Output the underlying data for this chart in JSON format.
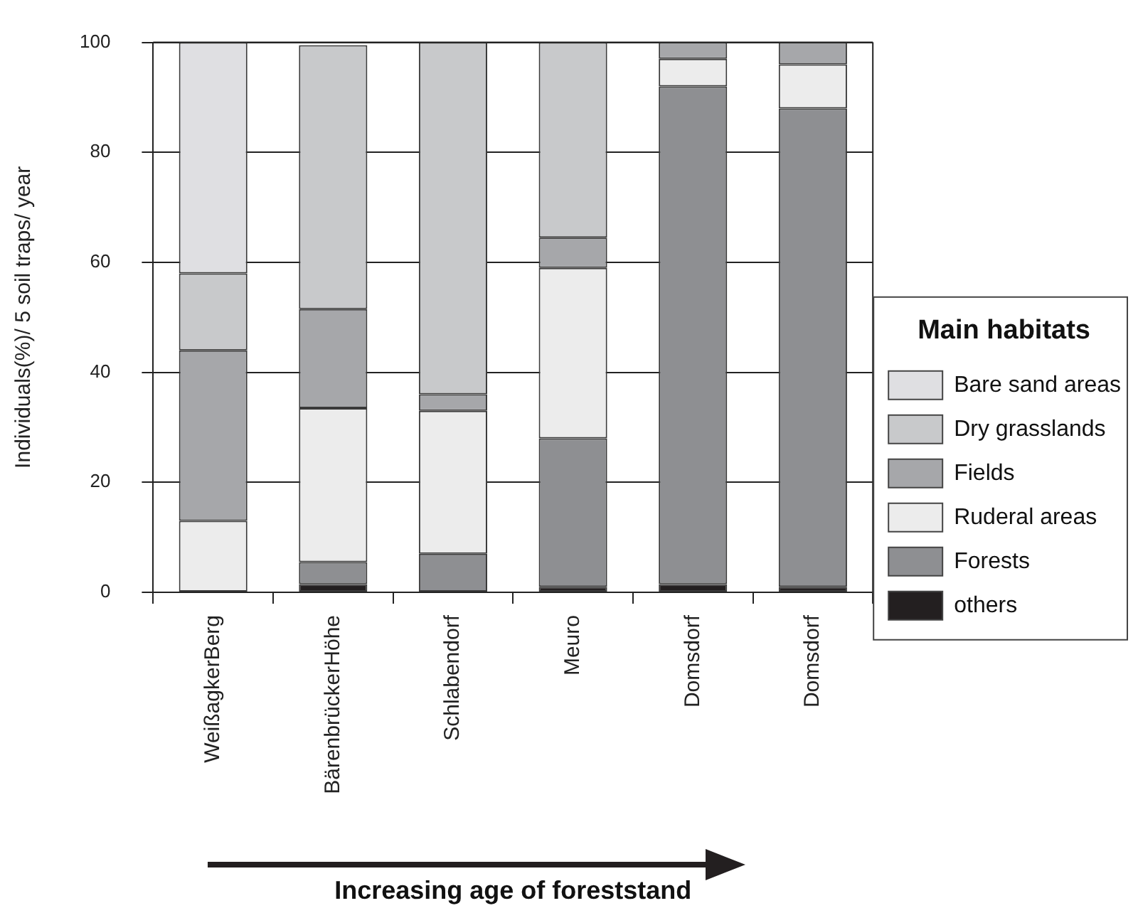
{
  "chart_data": {
    "type": "bar",
    "stacked": true,
    "xlabel": "Increasing age of foreststand",
    "ylabel": "Individuals(%)/ 5 soil traps/ year",
    "legend_title": "Main habitats",
    "legend": "right",
    "grid": "y",
    "categories": [
      "WeißagkerBerg",
      "BärenbrückerHöhe",
      "Schlabendorf",
      "Meuro",
      "Domsdorf",
      "Domsdorf"
    ],
    "ylim": [
      0,
      100
    ],
    "yticks": [
      0,
      20,
      40,
      60,
      80,
      100
    ],
    "series": [
      {
        "name": "others",
        "color": "#231f20",
        "values": [
          0,
          1.5,
          0,
          1,
          1.5,
          1
        ]
      },
      {
        "name": "Forests",
        "color": "#8e8f92",
        "values": [
          0,
          4,
          7,
          27,
          90.5,
          87
        ]
      },
      {
        "name": "Ruderal areas",
        "color": "#ececec",
        "values": [
          13,
          28,
          26,
          31,
          5,
          8
        ]
      },
      {
        "name": "Fields",
        "color": "#a6a7aa",
        "values": [
          31,
          18,
          3,
          5.5,
          3,
          4
        ]
      },
      {
        "name": "Dry grasslands",
        "color": "#c8c9cb",
        "values": [
          14,
          48,
          64,
          35.5,
          0,
          0
        ]
      },
      {
        "name": "Bare sand areas",
        "color": "#dfdfe2",
        "values": [
          42,
          0,
          0,
          0,
          0,
          0
        ]
      }
    ]
  }
}
